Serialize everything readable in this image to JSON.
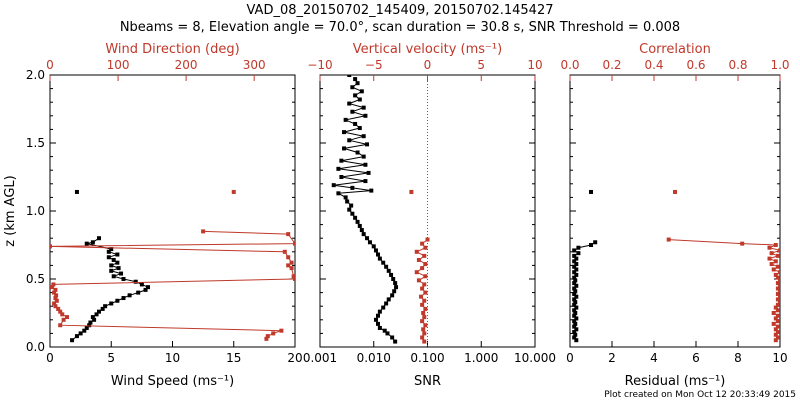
{
  "title_line1": "VAD_08_20150702_145409, 20150702.145427",
  "title_line2": "Nbeams = 8, Elevation angle = 70.0°, scan duration = 30.8 s, SNR Threshold = 0.008",
  "footer": "Plot created on Mon Oct 12 20:33:49 2015",
  "colors": {
    "primary": "#000000",
    "secondary": "#c0392b"
  },
  "chart_data": [
    {
      "type": "line",
      "title": "",
      "ylabel": "z (km AGL)",
      "ylim": [
        0,
        2.0
      ],
      "yticks": [
        "0.0",
        "0.5",
        "1.0",
        "1.5",
        "2.0"
      ],
      "bottom_axis": {
        "label": "Wind Speed (ms⁻¹)",
        "range": [
          0,
          20
        ],
        "ticks": [
          "0",
          "5",
          "10",
          "15",
          "20"
        ]
      },
      "top_axis": {
        "label": "Wind Direction (deg)",
        "range": [
          0,
          360
        ],
        "ticks": [
          "0",
          "100",
          "200",
          "300"
        ]
      },
      "series": [
        {
          "axis": "bottom",
          "color": "#000000",
          "points": [
            [
              2.2,
              1.14
            ],
            [
              4.0,
              0.8
            ],
            [
              3.5,
              0.77
            ],
            [
              3.0,
              0.76
            ],
            [
              5.0,
              0.72
            ],
            [
              4.8,
              0.7
            ],
            [
              5.5,
              0.68
            ],
            [
              4.8,
              0.66
            ],
            [
              5.2,
              0.64
            ],
            [
              5.5,
              0.62
            ],
            [
              5.0,
              0.6
            ],
            [
              5.6,
              0.58
            ],
            [
              5.0,
              0.56
            ],
            [
              5.8,
              0.54
            ],
            [
              5.2,
              0.52
            ],
            [
              6.0,
              0.5
            ],
            [
              7.0,
              0.48
            ],
            [
              7.5,
              0.46
            ],
            [
              8.0,
              0.44
            ],
            [
              7.8,
              0.42
            ],
            [
              7.2,
              0.4
            ],
            [
              6.5,
              0.38
            ],
            [
              6.0,
              0.36
            ],
            [
              5.5,
              0.34
            ],
            [
              5.0,
              0.32
            ],
            [
              4.5,
              0.3
            ],
            [
              4.3,
              0.28
            ],
            [
              4.0,
              0.26
            ],
            [
              3.8,
              0.24
            ],
            [
              3.5,
              0.22
            ],
            [
              3.6,
              0.2
            ],
            [
              3.3,
              0.18
            ],
            [
              3.2,
              0.16
            ],
            [
              3.0,
              0.14
            ],
            [
              2.8,
              0.12
            ],
            [
              2.5,
              0.1
            ],
            [
              2.2,
              0.08
            ],
            [
              1.8,
              0.05
            ]
          ]
        },
        {
          "axis": "top",
          "color": "#c0392b",
          "points": [
            [
              270,
              1.14
            ],
            [
              225,
              0.85
            ],
            [
              350,
              0.83
            ],
            [
              360,
              0.76
            ],
            [
              0,
              0.74
            ],
            [
              345,
              0.7
            ],
            [
              350,
              0.66
            ],
            [
              355,
              0.62
            ],
            [
              350,
              0.6
            ],
            [
              355,
              0.58
            ],
            [
              358,
              0.52
            ],
            [
              360,
              0.5
            ],
            [
              5,
              0.46
            ],
            [
              3,
              0.44
            ],
            [
              8,
              0.42
            ],
            [
              6,
              0.4
            ],
            [
              9,
              0.38
            ],
            [
              8,
              0.36
            ],
            [
              10,
              0.34
            ],
            [
              6,
              0.32
            ],
            [
              8,
              0.3
            ],
            [
              12,
              0.28
            ],
            [
              15,
              0.26
            ],
            [
              18,
              0.24
            ],
            [
              25,
              0.22
            ],
            [
              20,
              0.2
            ],
            [
              15,
              0.16
            ],
            [
              340,
              0.12
            ],
            [
              328,
              0.1
            ],
            [
              320,
              0.08
            ],
            [
              318,
              0.06
            ]
          ]
        }
      ]
    },
    {
      "type": "line",
      "title": "",
      "ylim": [
        0,
        2.0
      ],
      "bottom_axis": {
        "label": "SNR",
        "range": [
          0.001,
          10
        ],
        "scale": "log",
        "ticks": [
          "0.001",
          "0.010",
          "0.100",
          "1.000",
          "10.000"
        ]
      },
      "top_axis": {
        "label": "Vertical velocity (ms⁻¹)",
        "range": [
          -10,
          10
        ],
        "ticks": [
          "−10",
          "−5",
          "0",
          "5",
          "10"
        ]
      },
      "reference_line": {
        "axis": "top",
        "value": 0,
        "style": "dotted"
      },
      "series": [
        {
          "axis": "bottom",
          "color": "#000000",
          "points": [
            [
              0.0035,
              2.0
            ],
            [
              0.0045,
              1.97
            ],
            [
              0.005,
              1.94
            ],
            [
              0.004,
              1.91
            ],
            [
              0.006,
              1.88
            ],
            [
              0.0045,
              1.85
            ],
            [
              0.0055,
              1.82
            ],
            [
              0.0035,
              1.79
            ],
            [
              0.0065,
              1.76
            ],
            [
              0.004,
              1.73
            ],
            [
              0.007,
              1.7
            ],
            [
              0.003,
              1.67
            ],
            [
              0.0045,
              1.64
            ],
            [
              0.0055,
              1.61
            ],
            [
              0.0028,
              1.58
            ],
            [
              0.0065,
              1.55
            ],
            [
              0.0035,
              1.52
            ],
            [
              0.0075,
              1.49
            ],
            [
              0.0028,
              1.46
            ],
            [
              0.005,
              1.43
            ],
            [
              0.0065,
              1.4
            ],
            [
              0.0025,
              1.37
            ],
            [
              0.007,
              1.34
            ],
            [
              0.0022,
              1.31
            ],
            [
              0.008,
              1.28
            ],
            [
              0.0025,
              1.25
            ],
            [
              0.007,
              1.22
            ],
            [
              0.0018,
              1.19
            ],
            [
              0.004,
              1.17
            ],
            [
              0.009,
              1.15
            ],
            [
              0.0022,
              1.13
            ],
            [
              0.003,
              1.1
            ],
            [
              0.0032,
              1.07
            ],
            [
              0.0038,
              1.04
            ],
            [
              0.0035,
              1.01
            ],
            [
              0.004,
              0.98
            ],
            [
              0.0045,
              0.95
            ],
            [
              0.005,
              0.92
            ],
            [
              0.0055,
              0.89
            ],
            [
              0.006,
              0.86
            ],
            [
              0.0065,
              0.83
            ],
            [
              0.0075,
              0.8
            ],
            [
              0.0085,
              0.77
            ],
            [
              0.01,
              0.74
            ],
            [
              0.011,
              0.71
            ],
            [
              0.012,
              0.68
            ],
            [
              0.013,
              0.65
            ],
            [
              0.015,
              0.62
            ],
            [
              0.017,
              0.59
            ],
            [
              0.019,
              0.56
            ],
            [
              0.021,
              0.53
            ],
            [
              0.023,
              0.5
            ],
            [
              0.025,
              0.47
            ],
            [
              0.026,
              0.44
            ],
            [
              0.024,
              0.41
            ],
            [
              0.022,
              0.38
            ],
            [
              0.019,
              0.35
            ],
            [
              0.017,
              0.32
            ],
            [
              0.015,
              0.29
            ],
            [
              0.013,
              0.26
            ],
            [
              0.012,
              0.23
            ],
            [
              0.011,
              0.2
            ],
            [
              0.012,
              0.17
            ],
            [
              0.013,
              0.14
            ],
            [
              0.016,
              0.12
            ],
            [
              0.018,
              0.1
            ],
            [
              0.022,
              0.07
            ],
            [
              0.025,
              0.04
            ]
          ]
        },
        {
          "axis": "top",
          "color": "#c0392b",
          "points": [
            [
              -1.5,
              1.14
            ],
            [
              0,
              0.79
            ],
            [
              -0.5,
              0.76
            ],
            [
              -0.2,
              0.73
            ],
            [
              -1.0,
              0.7
            ],
            [
              -0.3,
              0.67
            ],
            [
              -0.8,
              0.64
            ],
            [
              -0.2,
              0.61
            ],
            [
              -0.5,
              0.58
            ],
            [
              -1.0,
              0.55
            ],
            [
              -0.2,
              0.52
            ],
            [
              -0.8,
              0.49
            ],
            [
              -0.3,
              0.46
            ],
            [
              -0.5,
              0.43
            ],
            [
              -0.2,
              0.4
            ],
            [
              -0.6,
              0.37
            ],
            [
              -0.3,
              0.34
            ],
            [
              -0.5,
              0.31
            ],
            [
              -0.2,
              0.28
            ],
            [
              -0.4,
              0.25
            ],
            [
              -0.3,
              0.22
            ],
            [
              -0.5,
              0.19
            ],
            [
              -0.2,
              0.16
            ],
            [
              -0.4,
              0.13
            ],
            [
              -0.3,
              0.1
            ],
            [
              -0.5,
              0.07
            ],
            [
              -0.3,
              0.04
            ]
          ]
        }
      ]
    },
    {
      "type": "line",
      "title": "",
      "ylim": [
        0,
        2.0
      ],
      "bottom_axis": {
        "label": "Residual (ms⁻¹)",
        "range": [
          0,
          10
        ],
        "ticks": [
          "0",
          "2",
          "4",
          "6",
          "8",
          "10"
        ]
      },
      "top_axis": {
        "label": "Correlation",
        "range": [
          0,
          1
        ],
        "ticks": [
          "0.0",
          "0.2",
          "0.4",
          "0.6",
          "0.8",
          "1.0"
        ]
      },
      "series": [
        {
          "axis": "bottom",
          "color": "#000000",
          "points": [
            [
              1.0,
              1.14
            ],
            [
              1.2,
              0.77
            ],
            [
              1.0,
              0.75
            ],
            [
              0.4,
              0.73
            ],
            [
              0.2,
              0.71
            ],
            [
              0.4,
              0.69
            ],
            [
              0.2,
              0.67
            ],
            [
              0.3,
              0.65
            ],
            [
              0.2,
              0.63
            ],
            [
              0.3,
              0.61
            ],
            [
              0.2,
              0.59
            ],
            [
              0.3,
              0.57
            ],
            [
              0.2,
              0.55
            ],
            [
              0.3,
              0.53
            ],
            [
              0.2,
              0.51
            ],
            [
              0.25,
              0.49
            ],
            [
              0.2,
              0.47
            ],
            [
              0.3,
              0.45
            ],
            [
              0.2,
              0.43
            ],
            [
              0.25,
              0.41
            ],
            [
              0.2,
              0.39
            ],
            [
              0.3,
              0.37
            ],
            [
              0.2,
              0.35
            ],
            [
              0.25,
              0.33
            ],
            [
              0.2,
              0.31
            ],
            [
              0.3,
              0.29
            ],
            [
              0.2,
              0.27
            ],
            [
              0.25,
              0.25
            ],
            [
              0.2,
              0.23
            ],
            [
              0.3,
              0.21
            ],
            [
              0.2,
              0.19
            ],
            [
              0.25,
              0.17
            ],
            [
              0.2,
              0.15
            ],
            [
              0.3,
              0.13
            ],
            [
              0.2,
              0.11
            ],
            [
              0.25,
              0.09
            ],
            [
              0.2,
              0.07
            ],
            [
              0.3,
              0.05
            ]
          ]
        },
        {
          "axis": "top",
          "color": "#c0392b",
          "points": [
            [
              0.5,
              1.14
            ],
            [
              0.47,
              0.79
            ],
            [
              0.82,
              0.76
            ],
            [
              0.98,
              0.75
            ],
            [
              0.95,
              0.73
            ],
            [
              1.0,
              0.71
            ],
            [
              0.96,
              0.69
            ],
            [
              0.99,
              0.67
            ],
            [
              0.95,
              0.65
            ],
            [
              0.98,
              0.63
            ],
            [
              0.96,
              0.61
            ],
            [
              0.99,
              0.59
            ],
            [
              0.97,
              0.57
            ],
            [
              1.0,
              0.55
            ],
            [
              0.98,
              0.53
            ],
            [
              0.99,
              0.51
            ],
            [
              1.0,
              0.49
            ],
            [
              0.99,
              0.47
            ],
            [
              1.0,
              0.45
            ],
            [
              0.99,
              0.43
            ],
            [
              1.0,
              0.41
            ],
            [
              0.99,
              0.39
            ],
            [
              1.0,
              0.37
            ],
            [
              0.99,
              0.35
            ],
            [
              1.0,
              0.33
            ],
            [
              0.99,
              0.31
            ],
            [
              0.98,
              0.29
            ],
            [
              0.99,
              0.27
            ],
            [
              0.97,
              0.25
            ],
            [
              0.99,
              0.23
            ],
            [
              0.98,
              0.21
            ],
            [
              0.99,
              0.19
            ],
            [
              0.97,
              0.17
            ],
            [
              0.99,
              0.15
            ],
            [
              0.98,
              0.13
            ],
            [
              0.99,
              0.11
            ],
            [
              0.98,
              0.09
            ],
            [
              0.99,
              0.07
            ],
            [
              0.98,
              0.05
            ]
          ]
        }
      ]
    }
  ]
}
